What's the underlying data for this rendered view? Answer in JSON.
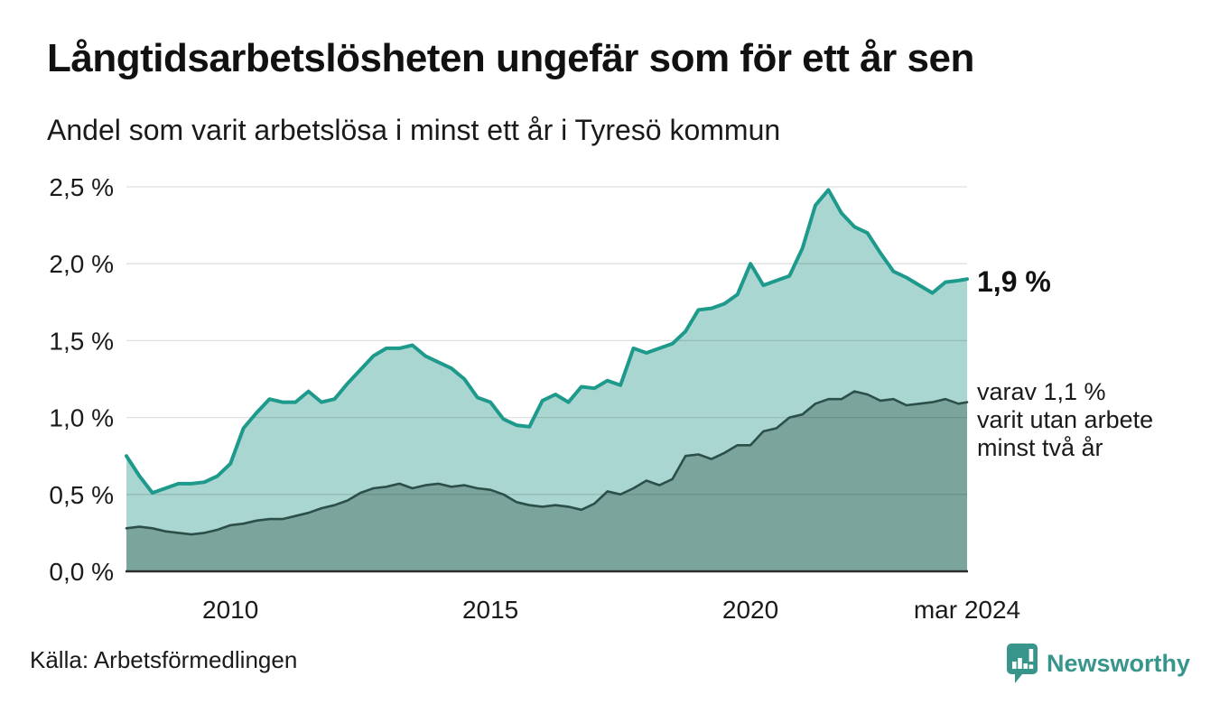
{
  "header": {
    "title": "Långtidsarbetslösheten ungefär som för ett år sen",
    "subtitle": "Andel som varit arbetslösa i minst ett år i Tyresö kommun"
  },
  "chart_data": {
    "type": "area",
    "title": "Långtidsarbetslösheten ungefär som för ett år sen",
    "subtitle": "Andel som varit arbetslösa i minst ett år i Tyresö kommun",
    "unit": "%",
    "grid": true,
    "legend_position": "none",
    "ylim": [
      0,
      2.5
    ],
    "x": [
      "2008-01",
      "2008-04",
      "2008-07",
      "2008-10",
      "2009-01",
      "2009-04",
      "2009-07",
      "2009-10",
      "2010-01",
      "2010-04",
      "2010-07",
      "2010-10",
      "2011-01",
      "2011-04",
      "2011-07",
      "2011-10",
      "2012-01",
      "2012-04",
      "2012-07",
      "2012-10",
      "2013-01",
      "2013-04",
      "2013-07",
      "2013-10",
      "2014-01",
      "2014-04",
      "2014-07",
      "2014-10",
      "2015-01",
      "2015-04",
      "2015-07",
      "2015-10",
      "2016-01",
      "2016-04",
      "2016-07",
      "2016-10",
      "2017-01",
      "2017-04",
      "2017-07",
      "2017-10",
      "2018-01",
      "2018-04",
      "2018-07",
      "2018-10",
      "2019-01",
      "2019-04",
      "2019-07",
      "2019-10",
      "2020-01",
      "2020-04",
      "2020-07",
      "2020-10",
      "2021-01",
      "2021-04",
      "2021-07",
      "2021-10",
      "2022-01",
      "2022-04",
      "2022-07",
      "2022-10",
      "2023-01",
      "2023-04",
      "2023-07",
      "2023-10",
      "2024-01",
      "2024-03"
    ],
    "series": [
      {
        "name": "Andel arbetslösa minst ett år",
        "line_color": "#1d9a8c",
        "fill_color": "#a9d6d0",
        "line_width": 4,
        "values": [
          0.75,
          0.62,
          0.51,
          0.54,
          0.57,
          0.57,
          0.58,
          0.62,
          0.7,
          0.93,
          1.03,
          1.12,
          1.1,
          1.1,
          1.17,
          1.1,
          1.12,
          1.22,
          1.31,
          1.4,
          1.45,
          1.45,
          1.47,
          1.4,
          1.36,
          1.32,
          1.25,
          1.13,
          1.1,
          0.99,
          0.95,
          0.94,
          1.11,
          1.15,
          1.1,
          1.2,
          1.19,
          1.24,
          1.21,
          1.45,
          1.42,
          1.45,
          1.48,
          1.56,
          1.7,
          1.71,
          1.74,
          1.8,
          2.0,
          1.86,
          1.89,
          1.92,
          2.1,
          2.38,
          2.48,
          2.33,
          2.24,
          2.2,
          2.07,
          1.95,
          1.91,
          1.86,
          1.81,
          1.88,
          1.89,
          1.9
        ]
      },
      {
        "name": "Andel arbetslösa minst två år",
        "line_color": "#2d4f4a",
        "fill_color": "#7ba49d",
        "line_width": 2.6,
        "values": [
          0.28,
          0.29,
          0.28,
          0.26,
          0.25,
          0.24,
          0.25,
          0.27,
          0.3,
          0.31,
          0.33,
          0.34,
          0.34,
          0.36,
          0.38,
          0.41,
          0.43,
          0.46,
          0.51,
          0.54,
          0.55,
          0.57,
          0.54,
          0.56,
          0.57,
          0.55,
          0.56,
          0.54,
          0.53,
          0.5,
          0.45,
          0.43,
          0.42,
          0.43,
          0.42,
          0.4,
          0.44,
          0.52,
          0.5,
          0.54,
          0.59,
          0.56,
          0.6,
          0.75,
          0.76,
          0.73,
          0.77,
          0.82,
          0.82,
          0.91,
          0.93,
          1.0,
          1.02,
          1.09,
          1.12,
          1.12,
          1.17,
          1.15,
          1.11,
          1.12,
          1.08,
          1.09,
          1.1,
          1.12,
          1.09,
          1.1
        ]
      }
    ],
    "yticks": [
      {
        "value": 0.0,
        "label": "0,0 %"
      },
      {
        "value": 0.5,
        "label": "0,5 %"
      },
      {
        "value": 1.0,
        "label": "1,0 %"
      },
      {
        "value": 1.5,
        "label": "1,5 %"
      },
      {
        "value": 2.0,
        "label": "2,0 %"
      },
      {
        "value": 2.5,
        "label": "2,5 %"
      }
    ],
    "xticks": [
      {
        "date": "2010-01",
        "label": "2010"
      },
      {
        "date": "2015-01",
        "label": "2015"
      },
      {
        "date": "2020-01",
        "label": "2020"
      },
      {
        "date": "2024-03",
        "label": "mar 2024"
      }
    ],
    "annotations": {
      "latest_value_label": "1,9 %",
      "note_lines": [
        "varav 1,1 %",
        "varit utan arbete",
        "minst två år"
      ]
    }
  },
  "footer": {
    "source": "Källa: Arbetsförmedlingen"
  },
  "brand": {
    "name": "Newsworthy",
    "color": "#37958c"
  },
  "colors": {
    "background": "#ffffff",
    "grid": "#d9d9d9",
    "axis_line": "#2d2d2d",
    "text": "#1a1a1a"
  }
}
